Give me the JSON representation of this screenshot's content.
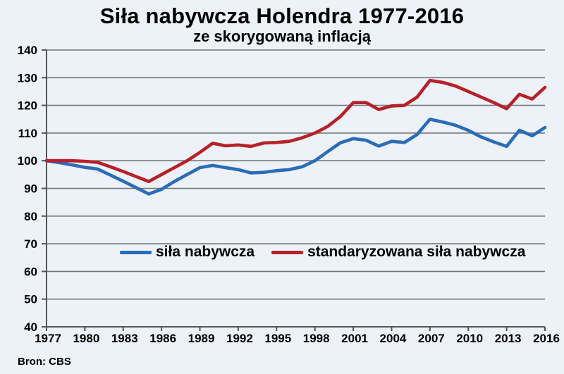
{
  "title": "Siła nabywcza Holendra 1977-2016",
  "subtitle": "ze skorygowaną inflacją",
  "source": "Bron: CBS",
  "colors": {
    "background": "#edf1f8",
    "grid": "#76777c",
    "axis": "#54555a",
    "text": "#000000",
    "blue": "#2a6cb8",
    "red": "#b6212a"
  },
  "legend": {
    "items": [
      {
        "label": "siła nabywcza",
        "color": "#2a6cb8"
      },
      {
        "label": "standaryzowana siła nabywcza",
        "color": "#b6212a"
      }
    ]
  },
  "chart_data": {
    "type": "line",
    "title": "Siła nabywcza Holendra 1977-2016",
    "subtitle": "ze skorygowaną inflacją",
    "x": [
      1977,
      1978,
      1979,
      1980,
      1981,
      1982,
      1983,
      1984,
      1985,
      1986,
      1987,
      1988,
      1989,
      1990,
      1991,
      1992,
      1993,
      1994,
      1995,
      1996,
      1997,
      1998,
      1999,
      2000,
      2001,
      2002,
      2003,
      2004,
      2005,
      2006,
      2007,
      2008,
      2009,
      2010,
      2011,
      2012,
      2013,
      2014,
      2015,
      2016
    ],
    "series": [
      {
        "name": "siła nabywcza",
        "color": "#2a6cb8",
        "values": [
          100,
          99.3,
          98.5,
          97.6,
          97,
          94.8,
          92.6,
          90.3,
          88,
          89.7,
          92.5,
          95,
          97.5,
          98.3,
          97.5,
          96.8,
          95.6,
          95.8,
          96.4,
          96.8,
          97.8,
          100,
          103.3,
          106.5,
          108,
          107.4,
          105.3,
          107,
          106.6,
          109.5,
          115,
          114,
          112.8,
          111,
          108.6,
          106.8,
          105.2,
          111,
          109,
          112
        ]
      },
      {
        "name": "standaryzowana siła nabywcza",
        "color": "#b6212a",
        "values": [
          100,
          100,
          100,
          99.8,
          99.4,
          97.8,
          96.1,
          94.3,
          92.5,
          95,
          97.5,
          100,
          103,
          106.3,
          105.4,
          105.7,
          105.2,
          106.4,
          106.6,
          107,
          108.3,
          110,
          112.4,
          116,
          121,
          121,
          118.5,
          119.8,
          120,
          123,
          129,
          128.3,
          127,
          125,
          123,
          121,
          118.8,
          124,
          122.3,
          126.5
        ]
      }
    ],
    "ylim": [
      40,
      140
    ],
    "yticks": [
      40,
      50,
      60,
      70,
      80,
      90,
      100,
      110,
      120,
      130,
      140
    ],
    "xticks": [
      1977,
      1980,
      1983,
      1986,
      1989,
      1992,
      1995,
      1998,
      2001,
      2004,
      2007,
      2010,
      2013,
      2016
    ],
    "grid": true,
    "legend_position": "inside-center-bottom",
    "source": "Bron: CBS"
  }
}
